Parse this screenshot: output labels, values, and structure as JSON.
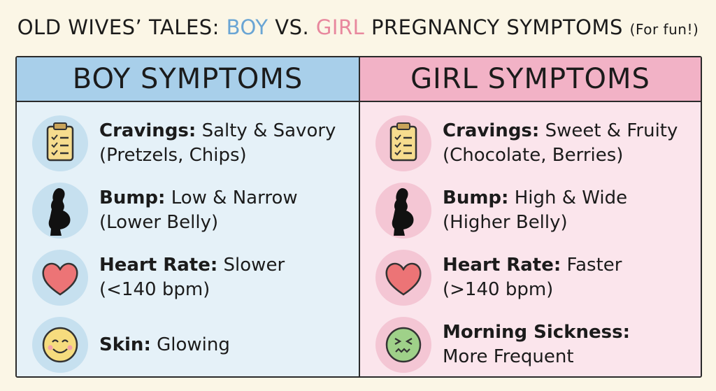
{
  "title": {
    "lead": "OLD WIVES’ TALES:",
    "boy": "BOY",
    "vs": "VS.",
    "girl": "GIRL",
    "rest": "PREGNANCY SYMPTOMS",
    "note": "(For fun!)"
  },
  "columns": [
    {
      "heading": "BOY SYMPTOMS",
      "items": [
        {
          "label": "Cravings:",
          "text": "Salty & Savory",
          "note": "(Pretzels, Chips)"
        },
        {
          "label": "Bump:",
          "text": "Low & Narrow",
          "note": "(Lower Belly)"
        },
        {
          "label": "Heart Rate:",
          "text": "Slower",
          "note": "(<140 bpm)"
        },
        {
          "label": "Skin:",
          "text": "Glowing"
        }
      ]
    },
    {
      "heading": "GIRL SYMPTOMS",
      "items": [
        {
          "label": "Cravings:",
          "text": "Sweet & Fruity",
          "note": "(Chocolate, Berries)"
        },
        {
          "label": "Bump:",
          "text": "High & Wide",
          "note": "(Higher Belly)"
        },
        {
          "label": "Heart Rate:",
          "text": "Faster",
          "note": "(>140 bpm)"
        },
        {
          "label": "Morning Sickness:",
          "text": "More Frequent"
        }
      ]
    }
  ]
}
